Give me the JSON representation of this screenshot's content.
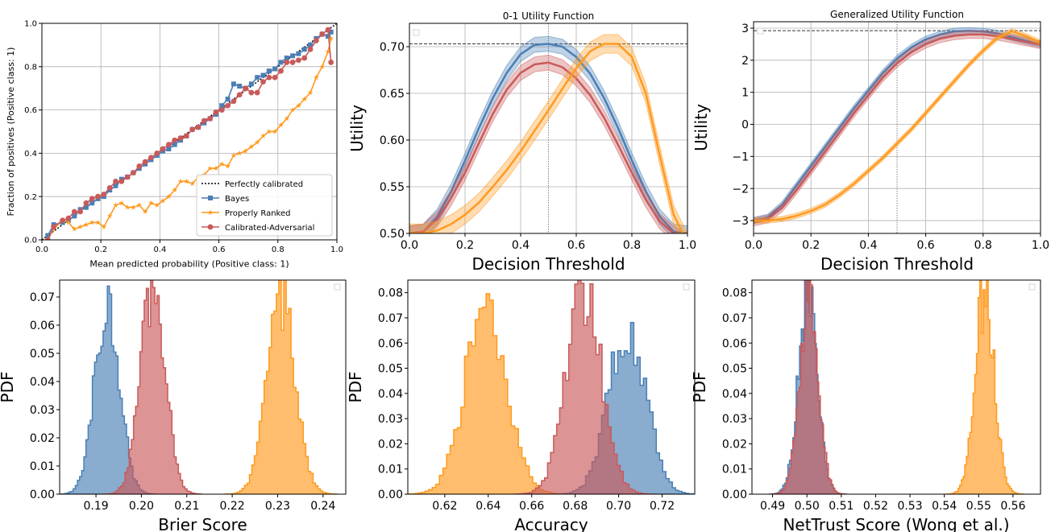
{
  "chart_data": [
    {
      "id": "calibration",
      "type": "line",
      "title": "",
      "xlabel": "Mean predicted probability (Positive class: 1)",
      "ylabel": "Fraction of positives (Positive class: 1)",
      "xlim": [
        0,
        1
      ],
      "ylim": [
        0,
        1
      ],
      "xticks": [
        "0.0",
        "0.2",
        "0.4",
        "0.6",
        "0.8",
        "1.0"
      ],
      "yticks": [
        "0.0",
        "0.2",
        "0.4",
        "0.6",
        "0.8",
        "1.0"
      ],
      "grid": true,
      "legend_position": "lower-right",
      "legend": [
        "Perfectly calibrated",
        "Bayes",
        "Properly Ranked",
        "Calibrated-Adversarial"
      ],
      "series": [
        {
          "name": "Perfectly calibrated",
          "color": "#000000",
          "style": "dotted",
          "x": [
            0,
            1
          ],
          "y": [
            0,
            1
          ]
        },
        {
          "name": "Bayes",
          "color": "#4a7fb5",
          "marker": "square",
          "x": [
            0.02,
            0.04,
            0.07,
            0.09,
            0.11,
            0.13,
            0.15,
            0.17,
            0.19,
            0.21,
            0.23,
            0.25,
            0.27,
            0.29,
            0.31,
            0.33,
            0.35,
            0.37,
            0.39,
            0.41,
            0.43,
            0.45,
            0.47,
            0.49,
            0.51,
            0.53,
            0.55,
            0.57,
            0.59,
            0.61,
            0.63,
            0.65,
            0.67,
            0.69,
            0.71,
            0.73,
            0.75,
            0.77,
            0.79,
            0.81,
            0.83,
            0.85,
            0.87,
            0.89,
            0.91,
            0.93,
            0.95,
            0.97,
            0.98
          ],
          "y": [
            0.02,
            0.07,
            0.08,
            0.09,
            0.11,
            0.14,
            0.15,
            0.17,
            0.19,
            0.2,
            0.23,
            0.25,
            0.28,
            0.29,
            0.31,
            0.33,
            0.35,
            0.37,
            0.39,
            0.41,
            0.42,
            0.44,
            0.46,
            0.48,
            0.51,
            0.52,
            0.54,
            0.56,
            0.58,
            0.62,
            0.65,
            0.72,
            0.71,
            0.7,
            0.72,
            0.75,
            0.76,
            0.78,
            0.79,
            0.82,
            0.84,
            0.85,
            0.86,
            0.88,
            0.9,
            0.93,
            0.95,
            0.94,
            0.96
          ]
        },
        {
          "name": "Properly Ranked",
          "color": "#ff9a1f",
          "marker": "star",
          "x": [
            0.02,
            0.04,
            0.07,
            0.09,
            0.11,
            0.13,
            0.15,
            0.17,
            0.19,
            0.21,
            0.23,
            0.25,
            0.27,
            0.29,
            0.31,
            0.33,
            0.35,
            0.37,
            0.39,
            0.41,
            0.43,
            0.45,
            0.47,
            0.49,
            0.51,
            0.53,
            0.55,
            0.57,
            0.59,
            0.61,
            0.63,
            0.65,
            0.67,
            0.69,
            0.71,
            0.73,
            0.75,
            0.77,
            0.79,
            0.81,
            0.83,
            0.85,
            0.87,
            0.89,
            0.91,
            0.93,
            0.95,
            0.97,
            0.98
          ],
          "y": [
            0.0,
            0.05,
            0.09,
            0.08,
            0.05,
            0.06,
            0.07,
            0.08,
            0.08,
            0.06,
            0.11,
            0.16,
            0.17,
            0.15,
            0.15,
            0.16,
            0.13,
            0.17,
            0.16,
            0.18,
            0.2,
            0.23,
            0.27,
            0.27,
            0.26,
            0.29,
            0.3,
            0.33,
            0.33,
            0.35,
            0.34,
            0.39,
            0.4,
            0.41,
            0.43,
            0.45,
            0.48,
            0.5,
            0.5,
            0.53,
            0.56,
            0.6,
            0.62,
            0.65,
            0.68,
            0.75,
            0.8,
            0.87,
            0.93
          ]
        },
        {
          "name": "Calibrated-Adversarial",
          "color": "#c95a5a",
          "marker": "circle",
          "x": [
            0.02,
            0.04,
            0.07,
            0.09,
            0.11,
            0.13,
            0.15,
            0.17,
            0.19,
            0.21,
            0.23,
            0.25,
            0.27,
            0.29,
            0.31,
            0.33,
            0.35,
            0.37,
            0.39,
            0.41,
            0.43,
            0.45,
            0.47,
            0.49,
            0.51,
            0.53,
            0.55,
            0.57,
            0.59,
            0.61,
            0.63,
            0.65,
            0.67,
            0.69,
            0.71,
            0.73,
            0.75,
            0.77,
            0.79,
            0.81,
            0.83,
            0.85,
            0.87,
            0.89,
            0.91,
            0.93,
            0.95,
            0.97,
            0.98
          ],
          "y": [
            0.0,
            0.06,
            0.09,
            0.1,
            0.13,
            0.13,
            0.17,
            0.19,
            0.2,
            0.21,
            0.24,
            0.27,
            0.27,
            0.29,
            0.31,
            0.34,
            0.36,
            0.38,
            0.4,
            0.42,
            0.44,
            0.46,
            0.47,
            0.48,
            0.51,
            0.52,
            0.55,
            0.56,
            0.59,
            0.6,
            0.62,
            0.64,
            0.67,
            0.7,
            0.68,
            0.68,
            0.73,
            0.75,
            0.75,
            0.78,
            0.82,
            0.82,
            0.83,
            0.84,
            0.88,
            0.92,
            0.95,
            0.97,
            0.82
          ]
        }
      ]
    },
    {
      "id": "utility01",
      "type": "line",
      "title": "0-1 Utility Function",
      "xlabel": "Decision Threshold",
      "ylabel": "Utility",
      "xlim": [
        0,
        1
      ],
      "ylim": [
        0.5,
        0.725
      ],
      "xticks": [
        "0.0",
        "0.2",
        "0.4",
        "0.6",
        "0.8",
        "1.0"
      ],
      "yticks": [
        "0.50",
        "0.55",
        "0.60",
        "0.65",
        "0.70"
      ],
      "grid": true,
      "reference_lines": {
        "hline": 0.703,
        "vline": 0.5
      },
      "series": [
        {
          "color": "#4a7fb5",
          "band": 0.008,
          "x": [
            0,
            0.05,
            0.1,
            0.15,
            0.2,
            0.25,
            0.3,
            0.35,
            0.4,
            0.45,
            0.5,
            0.55,
            0.6,
            0.65,
            0.7,
            0.75,
            0.8,
            0.85,
            0.9,
            0.95,
            1.0
          ],
          "y": [
            0.5,
            0.502,
            0.518,
            0.545,
            0.578,
            0.613,
            0.645,
            0.672,
            0.692,
            0.702,
            0.703,
            0.7,
            0.689,
            0.671,
            0.645,
            0.613,
            0.578,
            0.545,
            0.518,
            0.502,
            0.5
          ]
        },
        {
          "color": "#c95a5a",
          "band": 0.008,
          "x": [
            0,
            0.05,
            0.1,
            0.15,
            0.2,
            0.25,
            0.3,
            0.35,
            0.4,
            0.45,
            0.5,
            0.55,
            0.6,
            0.65,
            0.7,
            0.75,
            0.8,
            0.85,
            0.9,
            0.95,
            1.0
          ],
          "y": [
            0.5,
            0.502,
            0.515,
            0.538,
            0.565,
            0.597,
            0.628,
            0.654,
            0.672,
            0.681,
            0.683,
            0.678,
            0.666,
            0.648,
            0.624,
            0.595,
            0.565,
            0.536,
            0.513,
            0.5,
            0.49
          ]
        },
        {
          "color": "#ff9a1f",
          "band": 0.01,
          "x": [
            0,
            0.05,
            0.1,
            0.15,
            0.2,
            0.25,
            0.3,
            0.35,
            0.4,
            0.45,
            0.5,
            0.55,
            0.6,
            0.65,
            0.7,
            0.75,
            0.8,
            0.85,
            0.9,
            0.95,
            1.0
          ],
          "y": [
            0.5,
            0.5,
            0.503,
            0.51,
            0.52,
            0.533,
            0.55,
            0.568,
            0.588,
            0.61,
            0.632,
            0.655,
            0.677,
            0.695,
            0.703,
            0.703,
            0.689,
            0.65,
            0.584,
            0.52,
            0.49
          ]
        }
      ]
    },
    {
      "id": "generalized",
      "type": "line",
      "title": "Generalized Utility Function",
      "xlabel": "Decision Threshold",
      "ylabel": "Utility",
      "xlim": [
        0,
        1
      ],
      "ylim": [
        -3.4,
        3.2
      ],
      "xticks": [
        "0.0",
        "0.2",
        "0.4",
        "0.6",
        "0.8",
        "1.0"
      ],
      "yticks": [
        "−3",
        "−2",
        "−1",
        "0",
        "1",
        "2",
        "3"
      ],
      "grid": true,
      "reference_lines": {
        "hline": 2.92,
        "vline": 0.5
      },
      "series": [
        {
          "color": "#4a7fb5",
          "band": 0.1,
          "x": [
            0,
            0.05,
            0.1,
            0.15,
            0.2,
            0.25,
            0.3,
            0.35,
            0.4,
            0.45,
            0.5,
            0.55,
            0.6,
            0.65,
            0.7,
            0.75,
            0.8,
            0.85,
            0.9,
            0.95,
            1.0
          ],
          "y": [
            -3.0,
            -2.9,
            -2.5,
            -1.9,
            -1.3,
            -0.7,
            -0.1,
            0.5,
            1.05,
            1.6,
            2.05,
            2.4,
            2.65,
            2.8,
            2.9,
            2.92,
            2.9,
            2.83,
            2.72,
            2.6,
            2.5
          ]
        },
        {
          "color": "#c95a5a",
          "band": 0.12,
          "x": [
            0,
            0.05,
            0.1,
            0.15,
            0.2,
            0.25,
            0.3,
            0.35,
            0.4,
            0.45,
            0.5,
            0.55,
            0.6,
            0.65,
            0.7,
            0.75,
            0.8,
            0.85,
            0.9,
            0.95,
            1.0
          ],
          "y": [
            -3.05,
            -2.95,
            -2.6,
            -2.05,
            -1.45,
            -0.85,
            -0.25,
            0.35,
            0.9,
            1.45,
            1.9,
            2.25,
            2.5,
            2.67,
            2.76,
            2.8,
            2.8,
            2.75,
            2.66,
            2.57,
            2.48
          ]
        },
        {
          "color": "#ff9a1f",
          "band": 0.08,
          "x": [
            0,
            0.05,
            0.1,
            0.15,
            0.2,
            0.25,
            0.3,
            0.35,
            0.4,
            0.45,
            0.5,
            0.55,
            0.6,
            0.65,
            0.7,
            0.75,
            0.8,
            0.85,
            0.9,
            0.95,
            1.0
          ],
          "y": [
            -3.0,
            -3.0,
            -2.95,
            -2.85,
            -2.7,
            -2.5,
            -2.2,
            -1.85,
            -1.45,
            -1.05,
            -0.6,
            -0.15,
            0.35,
            0.85,
            1.35,
            1.85,
            2.3,
            2.7,
            2.9,
            2.75,
            2.55
          ]
        }
      ]
    },
    {
      "id": "brier",
      "type": "histogram",
      "title": "",
      "xlabel": "Brier Score",
      "ylabel": "PDF",
      "xlim": [
        0.182,
        0.245
      ],
      "ylim": [
        0,
        0.076
      ],
      "xticks": [
        "0.19",
        "0.20",
        "0.21",
        "0.22",
        "0.23",
        "0.24"
      ],
      "yticks": [
        "0.00",
        "0.01",
        "0.02",
        "0.03",
        "0.04",
        "0.05",
        "0.06",
        "0.07"
      ],
      "grid": false,
      "series": [
        {
          "color": "#4a7fb5",
          "mean": 0.1925,
          "sd": 0.0027,
          "peak": 0.068
        },
        {
          "color": "#c95a5a",
          "mean": 0.2025,
          "sd": 0.0027,
          "peak": 0.075
        },
        {
          "color": "#ff9a1f",
          "mean": 0.2308,
          "sd": 0.0031,
          "peak": 0.068
        }
      ]
    },
    {
      "id": "accuracy",
      "type": "histogram",
      "title": "",
      "xlabel": "Accuracy",
      "ylabel": "PDF",
      "xlim": [
        0.603,
        0.735
      ],
      "ylim": [
        0,
        0.085
      ],
      "xticks": [
        "0.62",
        "0.64",
        "0.66",
        "0.68",
        "0.70",
        "0.72"
      ],
      "yticks": [
        "0.00",
        "0.01",
        "0.02",
        "0.03",
        "0.04",
        "0.05",
        "0.06",
        "0.07",
        "0.08"
      ],
      "grid": false,
      "series": [
        {
          "color": "#ff9a1f",
          "mean": 0.639,
          "sd": 0.0095,
          "peak": 0.075
        },
        {
          "color": "#4a7fb5",
          "mean": 0.704,
          "sd": 0.0085,
          "peak": 0.066
        },
        {
          "color": "#c95a5a",
          "mean": 0.684,
          "sd": 0.008,
          "peak": 0.082
        }
      ]
    },
    {
      "id": "nettrust",
      "type": "histogram",
      "title": "",
      "xlabel": "NetTrust Score (Wong et al.)",
      "ylabel": "PDF",
      "xlim": [
        0.484,
        0.568
      ],
      "ylim": [
        0,
        0.085
      ],
      "xticks": [
        "0.49",
        "0.50",
        "0.51",
        "0.52",
        "0.53",
        "0.54",
        "0.55",
        "0.56"
      ],
      "yticks": [
        "0.00",
        "0.01",
        "0.02",
        "0.03",
        "0.04",
        "0.05",
        "0.06",
        "0.07",
        "0.08"
      ],
      "grid": false,
      "series": [
        {
          "color": "#4a7fb5",
          "mean": 0.5003,
          "sd": 0.0028,
          "peak": 0.08
        },
        {
          "color": "#c95a5a",
          "mean": 0.5006,
          "sd": 0.0027,
          "peak": 0.08
        },
        {
          "color": "#ff9a1f",
          "mean": 0.5518,
          "sd": 0.0028,
          "peak": 0.08
        }
      ]
    }
  ]
}
